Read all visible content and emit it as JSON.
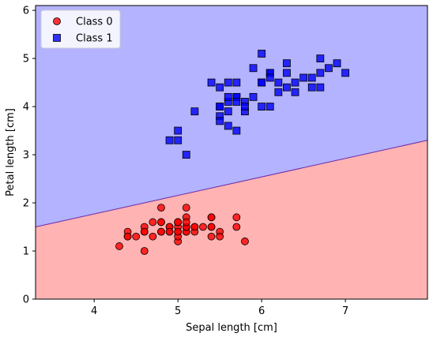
{
  "chart_data": {
    "type": "scatter",
    "xlabel": "Sepal length [cm]",
    "ylabel": "Petal length [cm]",
    "xlim": [
      3.3,
      7.98
    ],
    "ylim": [
      0,
      6.1
    ],
    "xticks": [
      4,
      5,
      6,
      7
    ],
    "yticks": [
      0,
      1,
      2,
      3,
      4,
      5,
      6
    ],
    "grid": false,
    "legend_position": "top-left",
    "decision_boundary": {
      "x": [
        3.3,
        7.98
      ],
      "y": [
        1.5,
        3.3
      ],
      "below_color": "#ffb3b3",
      "above_color": "#b3b3ff",
      "line_color": "#6a2aa8"
    },
    "series": [
      {
        "name": "Class 0",
        "marker": "circle",
        "color": "#ff0000",
        "edge_color": "#000000",
        "points": [
          [
            5.1,
            1.4
          ],
          [
            4.9,
            1.4
          ],
          [
            4.7,
            1.3
          ],
          [
            4.6,
            1.5
          ],
          [
            5.0,
            1.4
          ],
          [
            5.4,
            1.7
          ],
          [
            4.6,
            1.4
          ],
          [
            5.0,
            1.5
          ],
          [
            4.4,
            1.4
          ],
          [
            4.9,
            1.5
          ],
          [
            5.4,
            1.5
          ],
          [
            4.8,
            1.6
          ],
          [
            4.8,
            1.4
          ],
          [
            4.3,
            1.1
          ],
          [
            5.8,
            1.2
          ],
          [
            5.7,
            1.5
          ],
          [
            5.4,
            1.3
          ],
          [
            5.1,
            1.4
          ],
          [
            5.7,
            1.7
          ],
          [
            5.1,
            1.5
          ],
          [
            5.4,
            1.7
          ],
          [
            5.1,
            1.5
          ],
          [
            4.6,
            1.0
          ],
          [
            5.1,
            1.7
          ],
          [
            4.8,
            1.9
          ],
          [
            5.0,
            1.6
          ],
          [
            5.0,
            1.6
          ],
          [
            5.2,
            1.5
          ],
          [
            5.2,
            1.4
          ],
          [
            4.7,
            1.6
          ],
          [
            4.8,
            1.6
          ],
          [
            5.4,
            1.5
          ],
          [
            5.2,
            1.5
          ],
          [
            5.5,
            1.4
          ],
          [
            4.9,
            1.5
          ],
          [
            5.0,
            1.2
          ],
          [
            5.5,
            1.3
          ],
          [
            4.9,
            1.4
          ],
          [
            4.4,
            1.3
          ],
          [
            5.1,
            1.5
          ],
          [
            5.0,
            1.3
          ],
          [
            4.5,
            1.3
          ],
          [
            4.4,
            1.3
          ],
          [
            5.0,
            1.6
          ],
          [
            5.1,
            1.9
          ],
          [
            4.8,
            1.4
          ],
          [
            5.1,
            1.6
          ],
          [
            4.6,
            1.4
          ],
          [
            5.3,
            1.5
          ],
          [
            5.0,
            1.4
          ]
        ]
      },
      {
        "name": "Class 1",
        "marker": "square",
        "color": "#0000ff",
        "edge_color": "#000000",
        "points": [
          [
            7.0,
            4.7
          ],
          [
            6.4,
            4.5
          ],
          [
            6.9,
            4.9
          ],
          [
            5.5,
            4.0
          ],
          [
            6.5,
            4.6
          ],
          [
            5.7,
            4.5
          ],
          [
            6.3,
            4.7
          ],
          [
            4.9,
            3.3
          ],
          [
            6.6,
            4.6
          ],
          [
            5.2,
            3.9
          ],
          [
            5.0,
            3.5
          ],
          [
            5.9,
            4.2
          ],
          [
            6.0,
            4.0
          ],
          [
            6.1,
            4.7
          ],
          [
            5.6,
            3.6
          ],
          [
            6.7,
            4.4
          ],
          [
            5.6,
            4.5
          ],
          [
            5.8,
            4.1
          ],
          [
            6.2,
            4.5
          ],
          [
            5.6,
            3.9
          ],
          [
            5.9,
            4.8
          ],
          [
            6.1,
            4.0
          ],
          [
            6.3,
            4.9
          ],
          [
            6.1,
            4.7
          ],
          [
            6.4,
            4.3
          ],
          [
            6.6,
            4.4
          ],
          [
            6.8,
            4.8
          ],
          [
            6.7,
            5.0
          ],
          [
            6.0,
            4.5
          ],
          [
            5.7,
            3.5
          ],
          [
            5.5,
            3.8
          ],
          [
            5.5,
            3.7
          ],
          [
            5.8,
            3.9
          ],
          [
            6.0,
            5.1
          ],
          [
            5.4,
            4.5
          ],
          [
            6.0,
            4.5
          ],
          [
            6.7,
            4.7
          ],
          [
            6.3,
            4.4
          ],
          [
            5.6,
            4.1
          ],
          [
            5.5,
            4.0
          ],
          [
            5.5,
            4.4
          ],
          [
            6.1,
            4.6
          ],
          [
            5.8,
            4.0
          ],
          [
            5.0,
            3.3
          ],
          [
            5.6,
            4.2
          ],
          [
            5.7,
            4.2
          ],
          [
            5.7,
            4.2
          ],
          [
            6.2,
            4.3
          ],
          [
            5.1,
            3.0
          ],
          [
            5.7,
            4.1
          ]
        ]
      }
    ]
  }
}
